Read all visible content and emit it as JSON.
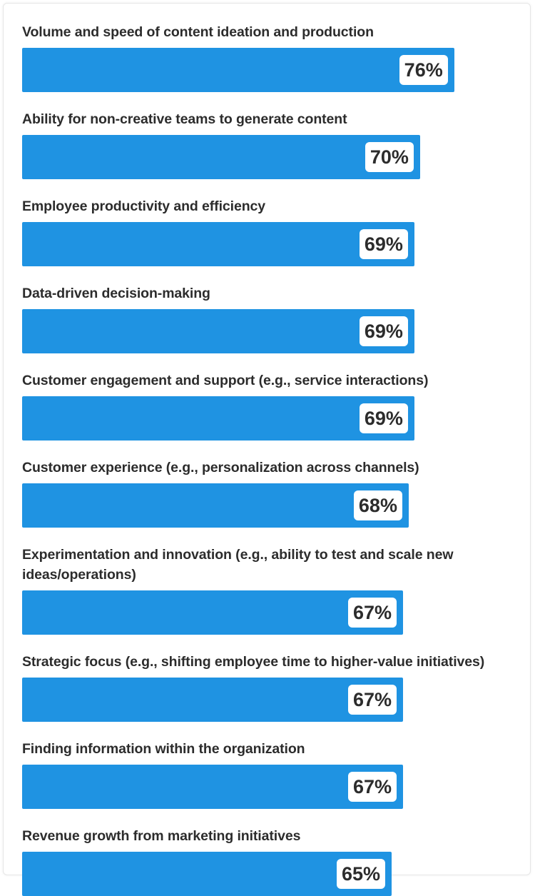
{
  "chart_data": {
    "type": "bar",
    "orientation": "horizontal",
    "categories": [
      "Volume and speed of content ideation and production",
      "Ability for non-creative teams to generate content",
      "Employee productivity and efficiency",
      "Data-driven decision-making",
      "Customer engagement and support (e.g., service interactions)",
      "Customer experience (e.g., personalization across channels)",
      "Experimentation and innovation (e.g., ability to test and scale new ideas/operations)",
      "Strategic focus (e.g., shifting employee time to higher-value initiatives)",
      "Finding information within the organization",
      "Revenue growth from marketing initiatives"
    ],
    "values": [
      76,
      70,
      69,
      69,
      69,
      68,
      67,
      67,
      67,
      65
    ],
    "value_labels": [
      "76%",
      "70%",
      "69%",
      "69%",
      "69%",
      "68%",
      "67%",
      "67%",
      "67%",
      "65%"
    ],
    "xlim": [
      0,
      100
    ],
    "grid": false,
    "legend": "none",
    "colors": {
      "bar": "#1f93e2",
      "label_bg": "#ffffff",
      "text": "#2c2c2c"
    }
  }
}
